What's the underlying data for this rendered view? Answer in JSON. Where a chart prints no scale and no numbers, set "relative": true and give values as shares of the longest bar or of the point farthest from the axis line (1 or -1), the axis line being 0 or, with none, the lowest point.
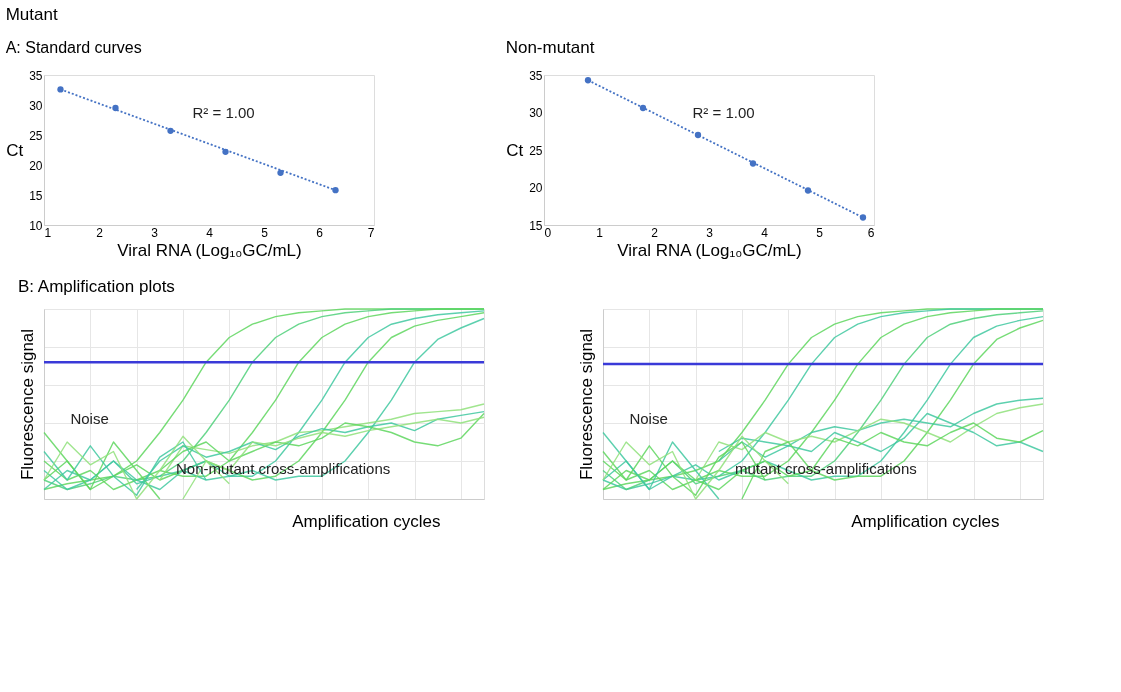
{
  "chart_data": [
    {
      "type": "scatter",
      "title": "Mutant",
      "subtitle": "A: Standard curves",
      "xlabel": "Viral RNA (Log₁₀GC/mL)",
      "ylabel": "Ct",
      "annotations": [
        "R² = 1.00"
      ],
      "x": [
        1.3,
        2.3,
        3.3,
        4.3,
        5.3,
        6.3
      ],
      "xlim": [
        1,
        7
      ],
      "xticks": [
        1,
        2,
        3,
        4,
        5,
        6,
        7
      ],
      "ylim": [
        10,
        35
      ],
      "yticks": [
        10,
        15,
        20,
        25,
        30,
        35
      ],
      "series": [
        {
          "type": "scatter",
          "color": "#4472c4",
          "marker": "circle",
          "values": [
            32.6,
            29.5,
            25.7,
            22.2,
            18.7,
            15.8
          ]
        },
        {
          "type": "line",
          "color": "#4472c4",
          "line_style": "dotted",
          "x": [
            1.3,
            6.3
          ],
          "values": [
            32.6,
            15.8
          ]
        }
      ]
    },
    {
      "type": "scatter",
      "title": "Non-mutant",
      "xlabel": "Viral RNA (Log₁₀GC/mL)",
      "ylabel": "Ct",
      "annotations": [
        "R² = 1.00"
      ],
      "x": [
        0.8,
        1.8,
        2.8,
        3.8,
        4.8,
        5.8
      ],
      "xlim": [
        0,
        6
      ],
      "xticks": [
        0,
        1,
        2,
        3,
        4,
        5,
        6
      ],
      "ylim": [
        15,
        35
      ],
      "yticks": [
        15,
        20,
        25,
        30,
        35
      ],
      "series": [
        {
          "type": "scatter",
          "color": "#4472c4",
          "marker": "circle",
          "values": [
            34.3,
            30.6,
            27.0,
            23.2,
            19.6,
            16.0
          ]
        },
        {
          "type": "line",
          "color": "#4472c4",
          "line_style": "dotted",
          "x": [
            0.8,
            5.8
          ],
          "values": [
            34.3,
            16.0
          ]
        }
      ]
    },
    {
      "type": "line",
      "relative": true,
      "title": "B: Amplification plots",
      "xlabel": "Amplification cycles",
      "ylabel": "Fluorescence signal",
      "annotations": [
        "Noise",
        "Non-mutant cross-amplifications"
      ],
      "grid": true,
      "categories": [
        null,
        null,
        null,
        null,
        null,
        null,
        null,
        null,
        null,
        null,
        null,
        null,
        null,
        null,
        null,
        null,
        null,
        null,
        null,
        null
      ],
      "ref_lines": [
        {
          "axis": "y",
          "value": 0.72,
          "color": "#3a3ad8"
        }
      ],
      "series": [
        {
          "color": "#5ed65e",
          "values": [
            0.05,
            0.08,
            0.1,
            0.12,
            0.2,
            0.35,
            0.52,
            0.72,
            0.85,
            0.92,
            0.96,
            0.98,
            0.99,
            1,
            1,
            1,
            1,
            1,
            1,
            1
          ]
        },
        {
          "color": "#4fd07a",
          "values": [
            0.1,
            0.05,
            0.08,
            0.12,
            0.1,
            0.12,
            0.2,
            0.35,
            0.52,
            0.72,
            0.85,
            0.92,
            0.96,
            0.98,
            0.99,
            1,
            1,
            1,
            1,
            1
          ]
        },
        {
          "color": "#5ed65e",
          "values": [
            0.2,
            0.1,
            0.15,
            0.05,
            0.1,
            0.15,
            0.12,
            0.12,
            0.2,
            0.35,
            0.52,
            0.72,
            0.85,
            0.92,
            0.96,
            0.98,
            0.99,
            1,
            1,
            1
          ]
        },
        {
          "color": "#40c8a0",
          "values": [
            0.15,
            0.05,
            0.1,
            0.2,
            0.08,
            0.12,
            0.15,
            0.1,
            0.12,
            0.12,
            0.2,
            0.35,
            0.52,
            0.72,
            0.85,
            0.92,
            0.95,
            0.97,
            0.98,
            0.99
          ]
        },
        {
          "color": "#5ed65e",
          "values": [
            0.1,
            0.2,
            0.05,
            0.12,
            0.18,
            0.1,
            0.15,
            0.2,
            0.15,
            0.1,
            0.12,
            0.2,
            0.35,
            0.52,
            0.72,
            0.85,
            0.91,
            0.94,
            0.96,
            0.98
          ]
        },
        {
          "color": "#40c8a0",
          "values": [
            0.05,
            0.15,
            0.1,
            0.2,
            0.1,
            0.05,
            0.15,
            0.2,
            0.12,
            0.15,
            0.1,
            0.12,
            0.12,
            0.2,
            0.35,
            0.52,
            0.72,
            0.84,
            0.9,
            0.95
          ]
        },
        {
          "color": "#8fe07a",
          "values": [
            null,
            null,
            null,
            null,
            null,
            0.1,
            0.28,
            0.26,
            0.24,
            0.28,
            0.3,
            0.35,
            0.36,
            0.38,
            0.4,
            0.42,
            0.45,
            0.46,
            0.47,
            0.5
          ]
        },
        {
          "color": "#40c8a0",
          "values": [
            null,
            null,
            null,
            null,
            0.05,
            0.2,
            0.28,
            0.22,
            0.25,
            0.3,
            0.26,
            0.33,
            0.37,
            0.35,
            0.38,
            0.4,
            0.36,
            0.42,
            0.44,
            0.46
          ]
        },
        {
          "color": "#5ed65e",
          "values": [
            null,
            null,
            null,
            null,
            null,
            0.15,
            0.25,
            0.3,
            0.2,
            0.25,
            0.3,
            0.28,
            0.32,
            0.4,
            0.38,
            0.35,
            0.3,
            0.28,
            0.32,
            0.45
          ]
        },
        {
          "color": "#8fe07a",
          "values": [
            null,
            null,
            null,
            null,
            null,
            null,
            0.0,
            0.2,
            0.15,
            0.3,
            0.28,
            0.32,
            0.35,
            0.33,
            0.36,
            0.38,
            0.4,
            0.42,
            0.4,
            0.43
          ]
        },
        {
          "color": "#5ed65e",
          "values": [
            0.35,
            0.2,
            0.05,
            0.3,
            0.15,
            0.0,
            null,
            null,
            null,
            null,
            null,
            null,
            null,
            null,
            null,
            null,
            null,
            null,
            null,
            null
          ]
        },
        {
          "color": "#40c8a0",
          "values": [
            0.25,
            0.1,
            0.28,
            0.12,
            0.02,
            0.22,
            0.3,
            0.1,
            null,
            null,
            null,
            null,
            null,
            null,
            null,
            null,
            null,
            null,
            null,
            null
          ]
        },
        {
          "color": "#8fe07a",
          "values": [
            0.1,
            0.3,
            0.18,
            0.25,
            0.0,
            0.15,
            0.33,
            0.2,
            0.08,
            null,
            null,
            null,
            null,
            null,
            null,
            null,
            null,
            null,
            null,
            null
          ]
        }
      ]
    },
    {
      "type": "line",
      "relative": true,
      "xlabel": "Amplification cycles",
      "ylabel": "Fluorescence signal",
      "annotations": [
        "Noise",
        "mutant cross-amplifications"
      ],
      "grid": true,
      "categories": [
        null,
        null,
        null,
        null,
        null,
        null,
        null,
        null,
        null,
        null,
        null,
        null,
        null,
        null,
        null,
        null,
        null,
        null,
        null,
        null
      ],
      "ref_lines": [
        {
          "axis": "y",
          "value": 0.71,
          "color": "#3a3ad8"
        }
      ],
      "series": [
        {
          "color": "#5ed65e",
          "values": [
            0.05,
            0.08,
            0.1,
            0.12,
            0.15,
            0.2,
            0.35,
            0.52,
            0.71,
            0.85,
            0.92,
            0.96,
            0.98,
            0.99,
            1,
            1,
            1,
            1,
            1,
            1
          ]
        },
        {
          "color": "#40c8a0",
          "values": [
            0.1,
            0.05,
            0.08,
            0.12,
            0.1,
            0.12,
            0.2,
            0.35,
            0.52,
            0.71,
            0.85,
            0.92,
            0.96,
            0.98,
            0.99,
            1,
            1,
            1,
            1,
            1
          ]
        },
        {
          "color": "#5ed65e",
          "values": [
            0.2,
            0.1,
            0.15,
            0.05,
            0.1,
            0.15,
            0.12,
            0.12,
            0.2,
            0.35,
            0.52,
            0.71,
            0.85,
            0.92,
            0.96,
            0.98,
            0.99,
            1,
            1,
            1
          ]
        },
        {
          "color": "#4fd07a",
          "values": [
            0.15,
            0.05,
            0.1,
            0.2,
            0.08,
            0.12,
            0.15,
            0.1,
            0.12,
            0.12,
            0.2,
            0.35,
            0.52,
            0.71,
            0.85,
            0.92,
            0.95,
            0.97,
            0.98,
            0.99
          ]
        },
        {
          "color": "#40c8a0",
          "values": [
            0.1,
            0.2,
            0.05,
            0.12,
            0.18,
            0.1,
            0.15,
            0.2,
            0.15,
            0.1,
            0.12,
            0.12,
            0.2,
            0.35,
            0.52,
            0.71,
            0.85,
            0.91,
            0.94,
            0.96
          ]
        },
        {
          "color": "#5ed65e",
          "values": [
            0.05,
            0.15,
            0.1,
            0.2,
            0.1,
            0.05,
            0.15,
            0.2,
            0.12,
            0.15,
            0.1,
            0.12,
            0.12,
            0.2,
            0.35,
            0.52,
            0.71,
            0.84,
            0.9,
            0.94
          ]
        },
        {
          "color": "#40c8a0",
          "values": [
            null,
            null,
            null,
            null,
            null,
            0.25,
            0.32,
            0.3,
            0.28,
            0.35,
            0.38,
            0.36,
            0.4,
            0.42,
            0.4,
            0.38,
            0.45,
            0.5,
            0.52,
            0.53
          ]
        },
        {
          "color": "#8fe07a",
          "values": [
            null,
            null,
            null,
            null,
            0.1,
            0.3,
            0.26,
            0.35,
            0.3,
            0.33,
            0.3,
            0.36,
            0.42,
            0.4,
            0.35,
            0.3,
            0.38,
            0.45,
            0.48,
            0.5
          ]
        },
        {
          "color": "#40c8a0",
          "values": [
            null,
            null,
            null,
            null,
            null,
            0.2,
            0.3,
            0.22,
            0.28,
            0.25,
            0.35,
            0.3,
            0.25,
            0.32,
            0.45,
            0.4,
            0.35,
            0.28,
            0.3,
            0.25
          ]
        },
        {
          "color": "#5ed65e",
          "values": [
            null,
            null,
            null,
            null,
            null,
            null,
            0.0,
            0.25,
            0.3,
            0.15,
            0.32,
            0.28,
            0.35,
            0.3,
            0.28,
            0.35,
            0.4,
            0.32,
            0.3,
            0.36
          ]
        },
        {
          "color": "#40c8a0",
          "values": [
            0.35,
            0.2,
            0.05,
            0.3,
            0.15,
            0.0,
            null,
            null,
            null,
            null,
            null,
            null,
            null,
            null,
            null,
            null,
            null,
            null,
            null,
            null
          ]
        },
        {
          "color": "#5ed65e",
          "values": [
            0.25,
            0.1,
            0.28,
            0.12,
            0.02,
            0.22,
            0.3,
            0.1,
            null,
            null,
            null,
            null,
            null,
            null,
            null,
            null,
            null,
            null,
            null,
            null
          ]
        },
        {
          "color": "#8fe07a",
          "values": [
            0.1,
            0.3,
            0.18,
            0.25,
            0.0,
            0.15,
            0.33,
            0.2,
            0.08,
            null,
            null,
            null,
            null,
            null,
            null,
            null,
            null,
            null,
            null,
            null
          ]
        }
      ]
    }
  ]
}
